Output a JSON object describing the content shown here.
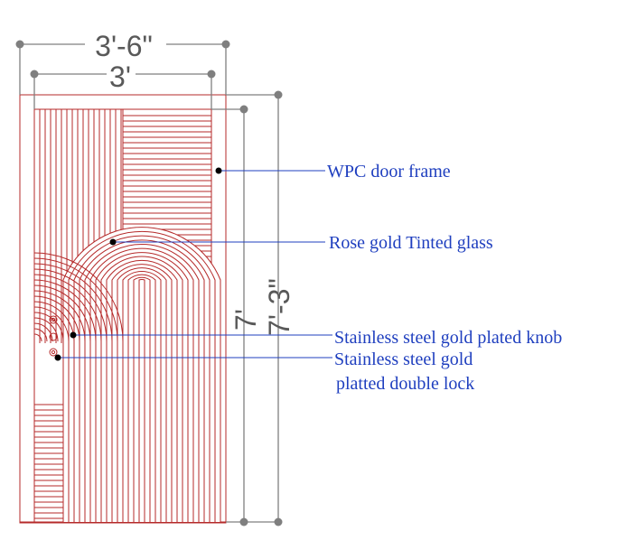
{
  "colors": {
    "door_line": "#b52a2a",
    "dimension": "#7f7f7f",
    "dimension_text": "#595959",
    "leader": "#1f3fbf",
    "label": "#1f3fbf",
    "dot": "#000000"
  },
  "dimensions": {
    "overall_width": "3'-6\"",
    "door_width": "3'",
    "door_height": "7'",
    "overall_height": "7'-3\""
  },
  "labels": {
    "frame": "WPC door frame",
    "glass": "Rose gold Tinted glass",
    "knob": "Stainless steel gold plated knob",
    "lock_line1": "Stainless steel gold",
    "lock_line2": "platted double lock"
  }
}
